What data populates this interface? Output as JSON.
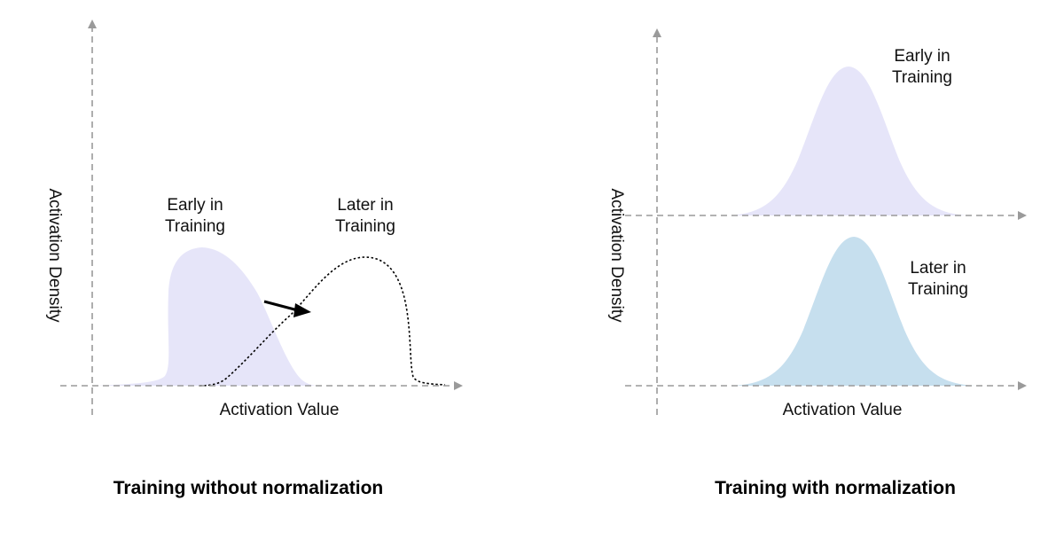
{
  "left_panel": {
    "title": "Training without normalization",
    "y_axis_label": "Activation Density",
    "x_axis_label": "Activation Value",
    "early_label": [
      "Early in",
      "Training"
    ],
    "later_label": [
      "Later in",
      "Training"
    ]
  },
  "right_panel": {
    "title": "Training with normalization",
    "y_axis_label": "Activation Density",
    "x_axis_label": "Activation Value",
    "early_label": [
      "Early in",
      "Training"
    ],
    "later_label": [
      "Later in",
      "Training"
    ]
  },
  "colors": {
    "early_fill": "#e6e5f9",
    "later_fill": "#c6dfee",
    "axis": "#9a9a9a",
    "dotted_curve": "#000000"
  }
}
